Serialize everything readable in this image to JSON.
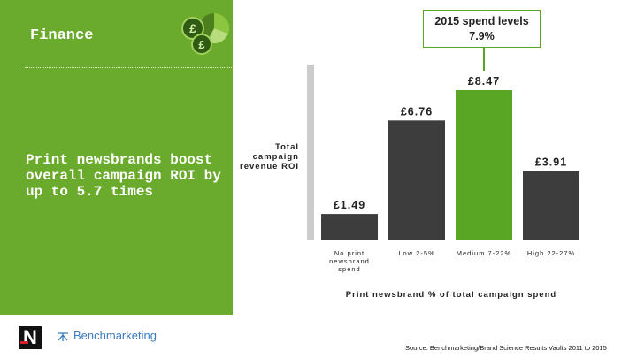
{
  "header": {
    "section_title": "Finance",
    "headline": "Print newsbrands boost overall campaign ROI by up to 5.7 times"
  },
  "colors": {
    "panel_green": "#6aaa2c",
    "bar_dark": "#3d3d3d",
    "bar_highlight": "#58a623"
  },
  "callout": {
    "line1": "2015 spend levels",
    "line2": "7.9%"
  },
  "chart_data": {
    "type": "bar",
    "ylabel": "Total campaign revenue ROI",
    "xlabel": "Print newsbrand % of total campaign spend",
    "categories": [
      "No print newsbrand spend",
      "Low 2-5%",
      "Medium 7-22%",
      "High 22-27%"
    ],
    "values": [
      1.49,
      6.76,
      8.47,
      3.91
    ],
    "data_labels": [
      "£1.49",
      "£6.76",
      "£8.47",
      "£3.91"
    ],
    "highlight_index": 2,
    "ylim": [
      0,
      8.47
    ]
  },
  "footer": {
    "logo_letter": "N",
    "partner_logo": "Benchmarketing",
    "source": "Source: Benchmarketing/Brand Science Results Vaults 2011 to 2015"
  }
}
